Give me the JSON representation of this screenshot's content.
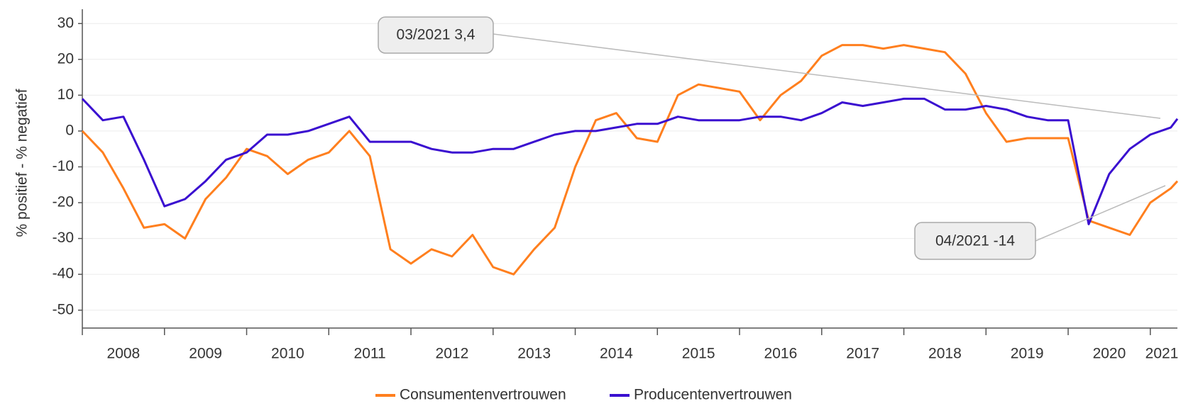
{
  "chart_data": {
    "type": "line",
    "ylabel": "% positief - % negatief",
    "x": [
      2008,
      2008.25,
      2008.5,
      2008.75,
      2009,
      2009.25,
      2009.5,
      2009.75,
      2010,
      2010.25,
      2010.5,
      2010.75,
      2011,
      2011.25,
      2011.5,
      2011.75,
      2012,
      2012.25,
      2012.5,
      2012.75,
      2013,
      2013.25,
      2013.5,
      2013.75,
      2014,
      2014.25,
      2014.5,
      2014.75,
      2015,
      2015.25,
      2015.5,
      2015.75,
      2016,
      2016.25,
      2016.5,
      2016.75,
      2017,
      2017.25,
      2017.5,
      2017.75,
      2018,
      2018.25,
      2018.5,
      2018.75,
      2019,
      2019.25,
      2019.5,
      2019.75,
      2020,
      2020.25,
      2020.5,
      2020.75,
      2021,
      2021.25,
      2021.33
    ],
    "series": [
      {
        "name": "Consumentenvertrouwen",
        "color": "#ff7f1e",
        "values": [
          0,
          -6,
          -16,
          -27,
          -26,
          -30,
          -19,
          -13,
          -5,
          -7,
          -12,
          -8,
          -6,
          0,
          -7,
          -33,
          -37,
          -33,
          -35,
          -29,
          -38,
          -40,
          -33,
          -27,
          -10,
          3,
          5,
          -2,
          -3,
          10,
          13,
          12,
          11,
          3,
          10,
          14,
          21,
          24,
          24,
          23,
          24,
          23,
          22,
          16,
          5,
          -3,
          -2,
          -2,
          -2,
          -25,
          -27,
          -29,
          -20,
          -16,
          -14
        ]
      },
      {
        "name": "Producentenvertrouwen",
        "color": "#3a0fd0",
        "values": [
          9,
          3,
          4,
          -8,
          -21,
          -19,
          -14,
          -8,
          -6,
          -1,
          -1,
          0,
          2,
          4,
          -3,
          -3,
          -3,
          -5,
          -6,
          -6,
          -5,
          -5,
          -3,
          -1,
          0,
          0,
          1,
          2,
          2,
          4,
          3,
          3,
          3,
          4,
          4,
          3,
          5,
          8,
          7,
          8,
          9,
          9,
          6,
          6,
          7,
          6,
          4,
          3,
          3,
          -26,
          -12,
          -5,
          -1,
          1,
          3.4
        ]
      }
    ],
    "xlim": [
      2008,
      2021.33
    ],
    "xticks": [
      {
        "value": 2008,
        "label": "2008"
      },
      {
        "value": 2009,
        "label": "2009"
      },
      {
        "value": 2010,
        "label": "2010"
      },
      {
        "value": 2011,
        "label": "2011"
      },
      {
        "value": 2012,
        "label": "2012"
      },
      {
        "value": 2013,
        "label": "2013"
      },
      {
        "value": 2014,
        "label": "2014"
      },
      {
        "value": 2015,
        "label": "2015"
      },
      {
        "value": 2016,
        "label": "2016"
      },
      {
        "value": 2017,
        "label": "2017"
      },
      {
        "value": 2018,
        "label": "2018"
      },
      {
        "value": 2019,
        "label": "2019"
      },
      {
        "value": 2020,
        "label": "2020"
      },
      {
        "value": 2021,
        "label": "2021"
      }
    ],
    "ylim": [
      -55,
      34
    ],
    "yticks": [
      30,
      20,
      10,
      0,
      -10,
      -20,
      -30,
      -40,
      -50
    ],
    "grid": true,
    "legend": "bottom",
    "annotations": [
      {
        "text": "03/2021 3,4"
      },
      {
        "text": "04/2021  -14"
      }
    ]
  }
}
